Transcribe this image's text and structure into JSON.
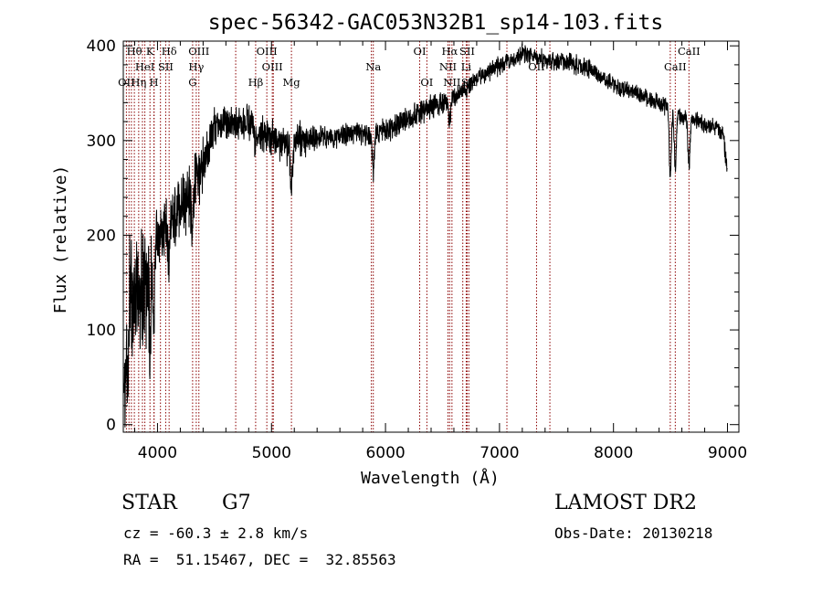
{
  "chart_data": {
    "type": "line",
    "title": "spec-56342-GAC053N32B1_sp14-103.fits",
    "xlabel": "Wavelength (Å)",
    "ylabel": "Flux (relative)",
    "xlim": [
      3700,
      9100
    ],
    "ylim": [
      -8,
      405
    ],
    "x_ticks": [
      4000,
      5000,
      6000,
      7000,
      8000,
      9000
    ],
    "y_ticks": [
      0,
      100,
      200,
      300,
      400
    ],
    "grid": false,
    "line_color": "#000000",
    "marker_color": "#8b0000",
    "continuum": [
      {
        "x": 3720,
        "y": 110
      },
      {
        "x": 3800,
        "y": 140
      },
      {
        "x": 3900,
        "y": 150
      },
      {
        "x": 4000,
        "y": 195
      },
      {
        "x": 4100,
        "y": 210
      },
      {
        "x": 4200,
        "y": 230
      },
      {
        "x": 4300,
        "y": 245
      },
      {
        "x": 4400,
        "y": 275
      },
      {
        "x": 4500,
        "y": 315
      },
      {
        "x": 4600,
        "y": 318
      },
      {
        "x": 4800,
        "y": 318
      },
      {
        "x": 4900,
        "y": 308
      },
      {
        "x": 5000,
        "y": 300
      },
      {
        "x": 5100,
        "y": 295
      },
      {
        "x": 5200,
        "y": 298
      },
      {
        "x": 5400,
        "y": 302
      },
      {
        "x": 5600,
        "y": 305
      },
      {
        "x": 5800,
        "y": 307
      },
      {
        "x": 6000,
        "y": 310
      },
      {
        "x": 6200,
        "y": 325
      },
      {
        "x": 6400,
        "y": 335
      },
      {
        "x": 6600,
        "y": 345
      },
      {
        "x": 6800,
        "y": 365
      },
      {
        "x": 7000,
        "y": 380
      },
      {
        "x": 7200,
        "y": 392
      },
      {
        "x": 7400,
        "y": 385
      },
      {
        "x": 7600,
        "y": 383
      },
      {
        "x": 7800,
        "y": 375
      },
      {
        "x": 8000,
        "y": 358
      },
      {
        "x": 8200,
        "y": 350
      },
      {
        "x": 8400,
        "y": 340
      },
      {
        "x": 8600,
        "y": 325
      },
      {
        "x": 8800,
        "y": 318
      },
      {
        "x": 8960,
        "y": 310
      },
      {
        "x": 8995,
        "y": 270
      }
    ],
    "absorption_features": [
      {
        "x": 3934,
        "depth": 80
      },
      {
        "x": 3969,
        "depth": 60
      },
      {
        "x": 4102,
        "depth": 40
      },
      {
        "x": 4308,
        "depth": 45
      },
      {
        "x": 4861,
        "depth": 20
      },
      {
        "x": 5175,
        "depth": 50
      },
      {
        "x": 5893,
        "depth": 40
      },
      {
        "x": 6563,
        "depth": 25
      },
      {
        "x": 8498,
        "depth": 70
      },
      {
        "x": 8542,
        "depth": 55
      },
      {
        "x": 8662,
        "depth": 50
      }
    ],
    "lines": [
      {
        "label": "Hθ",
        "x": 3797,
        "row": 0
      },
      {
        "label": "K",
        "x": 3934,
        "row": 0
      },
      {
        "label": "Hδ",
        "x": 4102,
        "row": 0
      },
      {
        "label": "OIII",
        "x": 4363,
        "row": 0
      },
      {
        "label": "OIII",
        "x": 4959,
        "row": 0
      },
      {
        "label": "OI",
        "x": 6300,
        "row": 0
      },
      {
        "label": "Hα",
        "x": 6563,
        "row": 0
      },
      {
        "label": "SII",
        "x": 6716,
        "row": 0
      },
      {
        "label": "CaII",
        "x": 8662,
        "row": 0
      },
      {
        "label": "HeI",
        "x": 3889,
        "row": 1
      },
      {
        "label": "SII",
        "x": 4072,
        "row": 1
      },
      {
        "label": "Hγ",
        "x": 4340,
        "row": 1
      },
      {
        "label": "OIII",
        "x": 5007,
        "row": 1
      },
      {
        "label": "Na",
        "x": 5893,
        "row": 1
      },
      {
        "label": "NII",
        "x": 6548,
        "row": 1
      },
      {
        "label": "Li",
        "x": 6708,
        "row": 1
      },
      {
        "label": "OII",
        "x": 7325,
        "row": 1
      },
      {
        "label": "CaII",
        "x": 8542,
        "row": 1
      },
      {
        "label": "OII",
        "x": 3727,
        "row": 2
      },
      {
        "label": "Hη",
        "x": 3835,
        "row": 2
      },
      {
        "label": "H",
        "x": 3969,
        "row": 2
      },
      {
        "label": "G",
        "x": 4308,
        "row": 2
      },
      {
        "label": "Hβ",
        "x": 4861,
        "row": 2
      },
      {
        "label": "Mg",
        "x": 5175,
        "row": 2
      },
      {
        "label": "OI",
        "x": 6363,
        "row": 2
      },
      {
        "label": "NII",
        "x": 6583,
        "row": 2
      },
      {
        "label": "SII",
        "x": 6731,
        "row": 2
      }
    ],
    "extra_marker_lines": [
      3750,
      3771,
      3868,
      3970,
      4026,
      4686,
      5016,
      5876,
      6678,
      7065,
      7442,
      8498
    ]
  },
  "info": {
    "class": "STAR",
    "subclass": "G7",
    "redshift": "cz = -60.3 ± 2.8 km/s",
    "coords": "RA =  51.15467, DEC =  32.85563",
    "survey": "LAMOST DR2",
    "obsdate": "Obs-Date: 20130218"
  }
}
